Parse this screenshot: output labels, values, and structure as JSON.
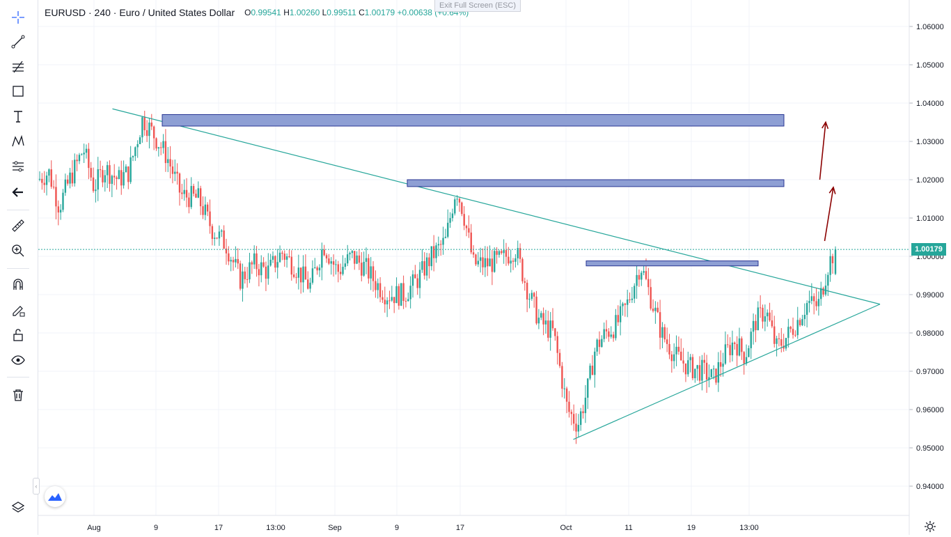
{
  "header": {
    "title": "EURUSD · 240 · Euro / United States Dollar",
    "open_label": "O",
    "open": "0.99541",
    "high_label": "H",
    "high": "1.00260",
    "low_label": "L",
    "low": "0.99511",
    "close_label": "C",
    "close": "1.00179",
    "change": "+0.00638 (+0.64%)"
  },
  "exit_fullscreen": "Exit Full Screen (ESC)",
  "price_tag": "1.00179",
  "toolbar": {
    "icons": [
      "crosshair-icon",
      "trend-line-icon",
      "fib-icon",
      "rectangle-icon",
      "text-icon",
      "pattern-icon",
      "prediction-icon",
      "back-arrow-icon",
      "ruler-icon",
      "zoom-in-icon",
      "magnet-icon",
      "lock-drawing-icon",
      "unlock-icon",
      "eye-icon",
      "trash-icon",
      "layers-icon"
    ]
  },
  "colors": {
    "up": "#26a69a",
    "down": "#ef5350",
    "zone_fill": "#8e9fd4",
    "zone_stroke": "#283593",
    "trend": "#26a69a",
    "arrow": "#8b0000"
  },
  "chart_data": {
    "type": "candlestick",
    "symbol": "EURUSD",
    "interval": "240",
    "ylim": [
      0.935,
      1.065
    ],
    "y_ticks": [
      "1.06000",
      "1.05000",
      "1.04000",
      "1.03000",
      "1.02000",
      "1.01000",
      "1.00000",
      "0.99000",
      "0.98000",
      "0.97000",
      "0.96000",
      "0.95000",
      "0.94000"
    ],
    "x_ticks": [
      "Aug",
      "9",
      "17",
      "13:00",
      "Sep",
      "9",
      "17",
      "Oct",
      "11",
      "19",
      "13:00"
    ],
    "last_price": 1.00179,
    "path": [
      [
        0,
        1.02
      ],
      [
        0.03,
        1.022
      ],
      [
        0.06,
        1.013
      ],
      [
        0.09,
        1.02
      ],
      [
        0.13,
        1.028
      ],
      [
        0.16,
        1.018
      ],
      [
        0.19,
        1.023
      ],
      [
        0.23,
        1.02
      ],
      [
        0.26,
        1.022
      ],
      [
        0.3,
        1.036
      ],
      [
        0.33,
        1.032
      ],
      [
        0.37,
        1.026
      ],
      [
        0.41,
        1.016
      ],
      [
        0.46,
        1.015
      ],
      [
        0.5,
        1.007
      ],
      [
        0.54,
        1.003
      ],
      [
        0.58,
        0.994
      ],
      [
        0.62,
        0.998
      ],
      [
        0.66,
        0.996
      ],
      [
        0.7,
        1.001
      ],
      [
        0.74,
        0.997
      ],
      [
        0.78,
        0.992
      ],
      [
        0.82,
        1.003
      ],
      [
        0.86,
        0.996
      ],
      [
        0.9,
        1.0
      ],
      [
        0.94,
        0.997
      ],
      [
        0.97,
        0.993
      ],
      [
        1.0,
        0.99
      ],
      [
        1.05,
        0.99
      ],
      [
        1.09,
        0.994
      ],
      [
        1.13,
        1.0
      ],
      [
        1.17,
        1.004
      ],
      [
        1.2,
        1.018
      ],
      [
        1.22,
        1.012
      ],
      [
        1.25,
        0.998
      ],
      [
        1.29,
        0.998
      ],
      [
        1.33,
        0.999
      ],
      [
        1.37,
        1.002
      ],
      [
        1.41,
        0.99
      ],
      [
        1.44,
        0.983
      ],
      [
        1.48,
        0.98
      ],
      [
        1.52,
        0.96
      ],
      [
        1.55,
        0.956
      ],
      [
        1.58,
        0.966
      ],
      [
        1.6,
        0.976
      ],
      [
        1.63,
        0.98
      ],
      [
        1.66,
        0.982
      ],
      [
        1.69,
        0.987
      ],
      [
        1.73,
        0.998
      ],
      [
        1.76,
        0.989
      ],
      [
        1.79,
        0.98
      ],
      [
        1.83,
        0.974
      ],
      [
        1.87,
        0.971
      ],
      [
        1.91,
        0.97
      ],
      [
        1.94,
        0.968
      ],
      [
        1.97,
        0.974
      ],
      [
        2.0,
        0.978
      ],
      [
        2.03,
        0.974
      ],
      [
        2.06,
        0.983
      ],
      [
        2.09,
        0.986
      ],
      [
        2.12,
        0.976
      ],
      [
        2.15,
        0.979
      ],
      [
        2.18,
        0.983
      ],
      [
        2.21,
        0.988
      ],
      [
        2.24,
        0.987
      ],
      [
        2.27,
        0.998
      ],
      [
        2.29,
        1.002
      ]
    ],
    "resistance_zones": [
      {
        "top": 1.037,
        "bottom": 1.034
      },
      {
        "top": 1.02,
        "bottom": 1.0182
      },
      {
        "top": 0.9988,
        "bottom": 0.9975
      }
    ],
    "trendlines": [
      {
        "from": [
          0.213,
          1.0385
        ],
        "to": [
          2.418,
          0.9875
        ]
      },
      {
        "from": [
          1.537,
          0.9522
        ],
        "to": [
          2.418,
          0.9875
        ]
      }
    ],
    "arrows": [
      {
        "from": [
          2.245,
          1.02
        ],
        "to": [
          2.262,
          1.035
        ]
      },
      {
        "from": [
          2.259,
          1.004
        ],
        "to": [
          2.284,
          1.018
        ]
      }
    ]
  }
}
